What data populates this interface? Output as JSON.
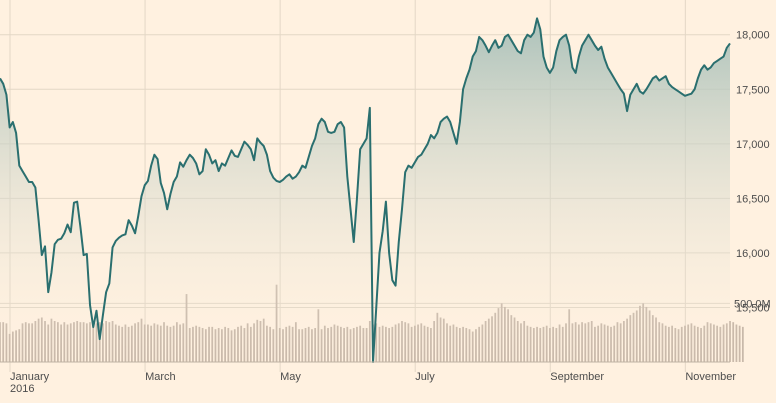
{
  "chart_data": {
    "type": "area",
    "title": "",
    "xlabel": "",
    "ylabel": "",
    "ylim": [
      15000,
      18300
    ],
    "y_ticks": [
      "15,500",
      "16,000",
      "16,500",
      "17,000",
      "17,500",
      "18,000"
    ],
    "y_tick_values": [
      15500,
      16000,
      16500,
      17000,
      17500,
      18000
    ],
    "x_ticks": [
      "January",
      "March",
      "May",
      "July",
      "September",
      "November"
    ],
    "x_tick_positions": [
      0,
      42,
      84,
      126,
      168,
      210
    ],
    "x_year_label": "2016",
    "volume_tick": "500.0M",
    "volume_tick_value": 500,
    "volume_max": 700,
    "grid": true,
    "colors": {
      "line": "#2a6f6f",
      "area_top": "#a7bfb8",
      "volume": "#c9b9aa",
      "grid": "#e3d7c6"
    },
    "series": [
      {
        "x_unit": "trading day of 2016",
        "values": [
          17600,
          17550,
          17450,
          17150,
          17200,
          17100,
          16800,
          16750,
          16700,
          16650,
          16650,
          16600,
          16300,
          15980,
          16060,
          15640,
          15820,
          16080,
          16120,
          16130,
          16180,
          16260,
          16190,
          16460,
          16470,
          16240,
          15980,
          15990,
          15520,
          15320,
          15470,
          15210,
          15430,
          15640,
          15720,
          16050,
          16110,
          16140,
          16160,
          16170,
          16300,
          16250,
          16180,
          16340,
          16520,
          16620,
          16660,
          16800,
          16900,
          16860,
          16640,
          16550,
          16400,
          16540,
          16650,
          16700,
          16830,
          16790,
          16850,
          16900,
          16870,
          16820,
          16720,
          16750,
          16950,
          16900,
          16820,
          16850,
          16750,
          16820,
          16800,
          16870,
          16940,
          16890,
          16880,
          16950,
          17020,
          16990,
          16950,
          16850,
          17050,
          17010,
          16980,
          16900,
          16750,
          16690,
          16660,
          16650,
          16670,
          16700,
          16720,
          16680,
          16700,
          16740,
          16800,
          16780,
          16880,
          16980,
          17050,
          17180,
          17230,
          17200,
          17110,
          17100,
          17110,
          17180,
          17200,
          17150,
          16700,
          16400,
          16100,
          16500,
          16950,
          17000,
          17050,
          17330,
          15000,
          15500,
          16000,
          16200,
          16470,
          16000,
          15750,
          15700,
          16100,
          16400,
          16740,
          16800,
          16780,
          16830,
          16880,
          16900,
          16950,
          17000,
          17080,
          17050,
          17100,
          17200,
          17230,
          17250,
          17200,
          17100,
          17000,
          17200,
          17500,
          17600,
          17680,
          17800,
          17850,
          17980,
          17950,
          17900,
          17840,
          17900,
          17950,
          17880,
          17900,
          17980,
          18000,
          17950,
          17900,
          17850,
          17830,
          17950,
          18000,
          17980,
          18020,
          18150,
          18050,
          17800,
          17700,
          17650,
          17700,
          17850,
          17950,
          17980,
          18000,
          17900,
          17700,
          17650,
          17800,
          17900,
          17950,
          18000,
          17950,
          17900,
          17860,
          17890,
          17780,
          17700,
          17650,
          17600,
          17550,
          17500,
          17460,
          17300,
          17450,
          17500,
          17550,
          17480,
          17460,
          17500,
          17550,
          17600,
          17620,
          17580,
          17600,
          17620,
          17550,
          17520,
          17500,
          17480,
          17460,
          17440,
          17450,
          17460,
          17500,
          17600,
          17680,
          17720,
          17680,
          17700,
          17740,
          17760,
          17780,
          17800,
          17880,
          17920
        ]
      }
    ],
    "volume_series": [
      {
        "unit": "M",
        "values": [
          340,
          340,
          330,
          240,
          260,
          270,
          280,
          330,
          340,
          330,
          330,
          350,
          370,
          380,
          350,
          320,
          370,
          350,
          340,
          320,
          340,
          320,
          330,
          340,
          350,
          340,
          340,
          330,
          340,
          320,
          330,
          340,
          330,
          350,
          340,
          350,
          320,
          310,
          300,
          320,
          300,
          310,
          330,
          340,
          370,
          320,
          320,
          310,
          330,
          320,
          310,
          340,
          310,
          300,
          310,
          340,
          320,
          330,
          580,
          290,
          300,
          310,
          300,
          290,
          280,
          300,
          300,
          280,
          290,
          280,
          300,
          290,
          270,
          280,
          300,
          310,
          290,
          330,
          300,
          330,
          360,
          350,
          370,
          310,
          300,
          280,
          660,
          290,
          280,
          300,
          310,
          300,
          340,
          280,
          280,
          290,
          300,
          280,
          290,
          450,
          280,
          310,
          290,
          300,
          320,
          310,
          300,
          290,
          300,
          280,
          290,
          300,
          310,
          290,
          290,
          350,
          320,
          330,
          300,
          310,
          300,
          290,
          300,
          320,
          330,
          350,
          340,
          330,
          300,
          310,
          320,
          330,
          310,
          300,
          290,
          350,
          420,
          380,
          370,
          330,
          310,
          320,
          300,
          290,
          300,
          290,
          280,
          260,
          280,
          300,
          320,
          350,
          370,
          390,
          420,
          460,
          500,
          470,
          450,
          400,
          380,
          350,
          330,
          350,
          310,
          300,
          290,
          300,
          290,
          300,
          310,
          290,
          300,
          290,
          320,
          300,
          330,
          450,
          330,
          340,
          320,
          340,
          330,
          340,
          350,
          300,
          310,
          330,
          320,
          310,
          300,
          310,
          340,
          330,
          350,
          370,
          400,
          420,
          440,
          480,
          500,
          470,
          440,
          400,
          380,
          340,
          330,
          310,
          300,
          310,
          290,
          280,
          300,
          310,
          320,
          330,
          310,
          300,
          290,
          310,
          340,
          330,
          320,
          310,
          300,
          320,
          330,
          350,
          340,
          320,
          310,
          300
        ]
      }
    ]
  }
}
